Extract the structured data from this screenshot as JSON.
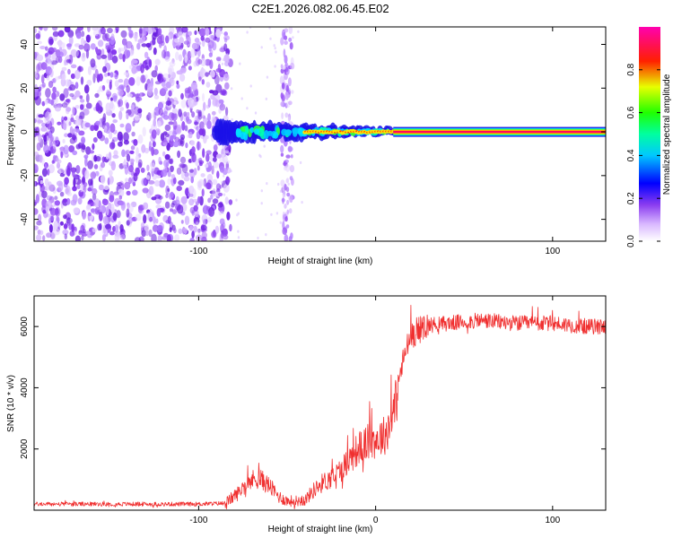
{
  "title": "C2E1.2026.082.06.45.E02",
  "chart_data": [
    {
      "type": "heatmap",
      "name": "spectrogram",
      "xlabel": "Height of straight line (km)",
      "ylabel": "Frequency (Hz)",
      "xlim": [
        -193,
        130
      ],
      "ylim": [
        -50,
        48
      ],
      "x_ticks": [
        -100,
        0,
        100
      ],
      "x_tick_labels": [
        "-100",
        "",
        "100"
      ],
      "y_ticks": [
        -40,
        -20,
        0,
        20,
        40
      ],
      "y_tick_labels": [
        "-40",
        "-20",
        "0",
        "20",
        "40"
      ],
      "colorbar": {
        "label": "Normalized spectral amplitude",
        "range": [
          0,
          1
        ],
        "ticks": [
          0.0,
          0.2,
          0.4,
          0.6,
          0.8
        ],
        "tick_labels": [
          "0.0",
          "0.2",
          "0.4",
          "0.6",
          "0.8"
        ],
        "colors": [
          "#ffffff",
          "#b070ff",
          "#0000ff",
          "#00ffff",
          "#00ff00",
          "#ffff00",
          "#ff0000",
          "#ff00c0"
        ]
      },
      "features": {
        "noise_region_x": [
          -193,
          -87
        ],
        "vertical_stripe_x": -50,
        "signal_band_center_hz": 0,
        "signal_onset_x": -87,
        "strong_signal_from_x": 12
      }
    },
    {
      "type": "line",
      "name": "snr",
      "xlabel": "Height of straight line (km)",
      "ylabel": "SNR (10 * v/v)",
      "xlim": [
        -193,
        130
      ],
      "ylim": [
        0,
        7000
      ],
      "x_ticks": [
        -100,
        0,
        100
      ],
      "x_tick_labels": [
        "-100",
        "0",
        "100"
      ],
      "y_ticks": [
        2000,
        4000,
        6000
      ],
      "y_tick_labels": [
        "2000",
        "4000",
        "6000"
      ],
      "color": "#f03030",
      "series": [
        {
          "name": "SNR",
          "x": [
            -193,
            -150,
            -100,
            -85,
            -78,
            -72,
            -66,
            -60,
            -55,
            -50,
            -45,
            -40,
            -35,
            -30,
            -25,
            -20,
            -15,
            -10,
            -5,
            0,
            5,
            8,
            11,
            14,
            17,
            20,
            25,
            30,
            40,
            50,
            60,
            70,
            80,
            90,
            100,
            110,
            120,
            130
          ],
          "y": [
            200,
            200,
            200,
            230,
            550,
            950,
            1050,
            800,
            450,
            300,
            300,
            330,
            650,
            900,
            1050,
            1300,
            1650,
            2000,
            2200,
            2300,
            2450,
            2800,
            3500,
            4500,
            5200,
            5700,
            5900,
            6050,
            6100,
            6150,
            6200,
            6150,
            6100,
            6100,
            6100,
            6050,
            6000,
            6000
          ]
        }
      ]
    }
  ]
}
